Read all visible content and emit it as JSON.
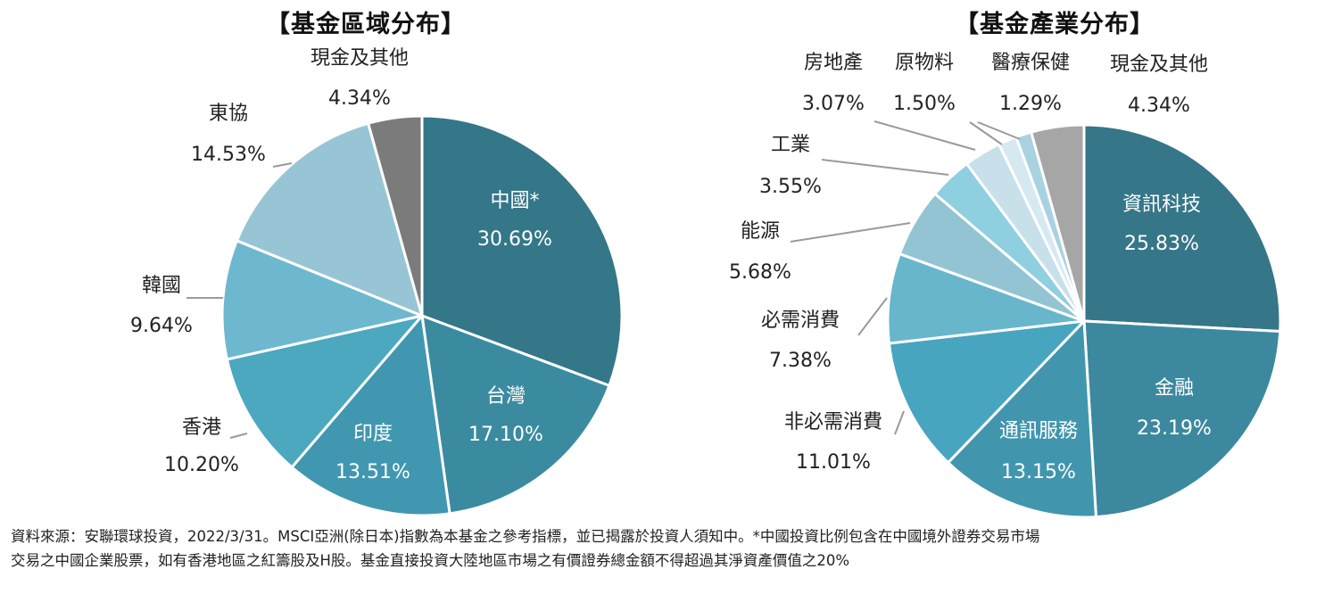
{
  "chart_data": [
    {
      "type": "pie",
      "title": "【基金區域分布】",
      "slices": [
        {
          "name": "中國*",
          "value_label": "30.69%",
          "value": 30.69,
          "color": "#347788"
        },
        {
          "name": "台灣",
          "value_label": "17.10%",
          "value": 17.1,
          "color": "#3b8ba0"
        },
        {
          "name": "印度",
          "value_label": "13.51%",
          "value": 13.51,
          "color": "#4197b0"
        },
        {
          "name": "香港",
          "value_label": "10.20%",
          "value": 10.2,
          "color": "#4ba8bf"
        },
        {
          "name": "韓國",
          "value_label": "9.64%",
          "value": 9.64,
          "color": "#6eb8cf"
        },
        {
          "name": "東協",
          "value_label": "14.53%",
          "value": 14.53,
          "color": "#97c5d5"
        },
        {
          "name": "現金及其他",
          "value_label": "4.34%",
          "value": 4.34,
          "color": "#7b7b7b"
        }
      ]
    },
    {
      "type": "pie",
      "title": "【基金產業分布】",
      "slices": [
        {
          "name": "資訊科技",
          "value_label": "25.83%",
          "value": 25.83,
          "color": "#357688"
        },
        {
          "name": "金融",
          "value_label": "23.19%",
          "value": 23.19,
          "color": "#3c899f"
        },
        {
          "name": "通訊服務",
          "value_label": "13.15%",
          "value": 13.15,
          "color": "#4196ae"
        },
        {
          "name": "非必需消費",
          "value_label": "11.01%",
          "value": 11.01,
          "color": "#47a5c0"
        },
        {
          "name": "必需消費",
          "value_label": "7.38%",
          "value": 7.38,
          "color": "#67b6cc"
        },
        {
          "name": "能源",
          "value_label": "5.68%",
          "value": 5.68,
          "color": "#92c4d3"
        },
        {
          "name": "工業",
          "value_label": "3.55%",
          "value": 3.55,
          "color": "#8ecfe0"
        },
        {
          "name": "房地產",
          "value_label": "3.07%",
          "value": 3.07,
          "color": "#c8e0ea"
        },
        {
          "name": "原物料",
          "value_label": "1.50%",
          "value": 1.5,
          "color": "#d6e9f1"
        },
        {
          "name": "醫療保健",
          "value_label": "1.29%",
          "value": 1.29,
          "color": "#a9d2e1"
        },
        {
          "name": "現金及其他",
          "value_label": "4.34%",
          "value": 4.34,
          "color": "#a6a6a6"
        }
      ]
    }
  ],
  "footnote": {
    "line1": "資料來源：安聯環球投資，2022/3/31。MSCI亞洲(除日本)指數為本基金之參考指標，並已揭露於投資人須知中。*中國投資比例包含在中國境外證券交易市場",
    "line2": "交易之中國企業股票，如有香港地區之紅籌股及H股。基金直接投資大陸地區市場之有價證券總金額不得超過其淨資產價值之20%"
  }
}
